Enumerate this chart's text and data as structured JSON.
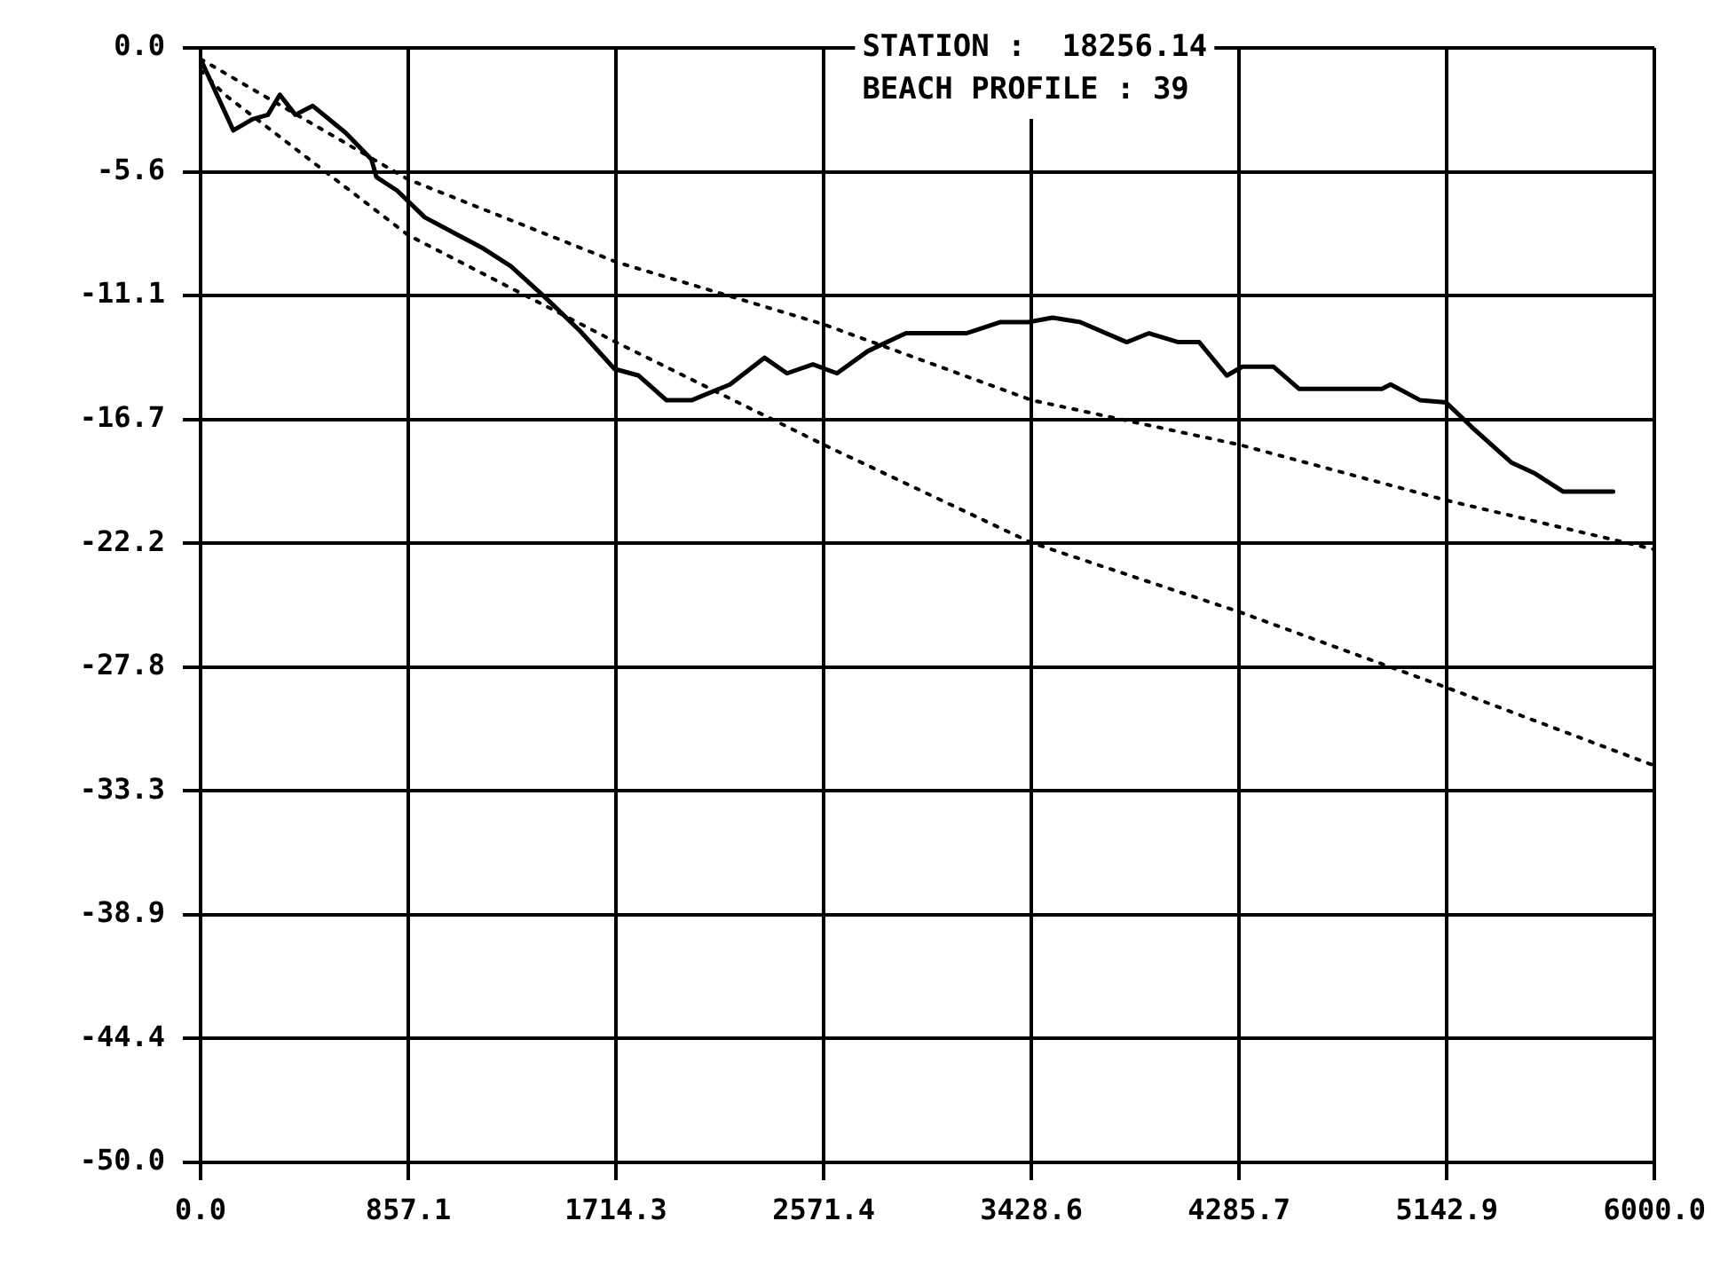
{
  "chart_data": {
    "type": "line",
    "title": "STATION :  18256.14",
    "subtitle": "BEACH PROFILE : 39",
    "xlim": [
      0,
      6000
    ],
    "ylim": [
      -50,
      0
    ],
    "xticks": [
      {
        "value": 0,
        "label": "0.0"
      },
      {
        "value": 857.14,
        "label": "857.1"
      },
      {
        "value": 1714.29,
        "label": "1714.3"
      },
      {
        "value": 2571.43,
        "label": "2571.4"
      },
      {
        "value": 3428.57,
        "label": "3428.6"
      },
      {
        "value": 4285.71,
        "label": "4285.7"
      },
      {
        "value": 5142.86,
        "label": "5142.9"
      },
      {
        "value": 6000,
        "label": "6000.0"
      }
    ],
    "yticks": [
      {
        "value": 0,
        "label": "0.0"
      },
      {
        "value": -5.556,
        "label": "-5.6"
      },
      {
        "value": -11.111,
        "label": "-11.1"
      },
      {
        "value": -16.667,
        "label": "-16.7"
      },
      {
        "value": -22.222,
        "label": "-22.2"
      },
      {
        "value": -27.778,
        "label": "-27.8"
      },
      {
        "value": -33.333,
        "label": "-33.3"
      },
      {
        "value": -38.889,
        "label": "-38.9"
      },
      {
        "value": -44.444,
        "label": "-44.4"
      },
      {
        "value": -50,
        "label": "-50.0"
      }
    ],
    "grid": true,
    "legend": false,
    "marker": "none",
    "series": [
      {
        "color": "#000000",
        "line_style": "solid",
        "x": [
          0,
          135,
          214,
          278,
          327,
          391,
          463,
          598,
          705,
          726,
          811,
          925,
          1167,
          1281,
          1423,
          1566,
          1708,
          1808,
          1922,
          2028,
          2185,
          2327,
          2420,
          2527,
          2626,
          2754,
          2911,
          3160,
          3302,
          3416,
          3516,
          3630,
          3822,
          3914,
          4035,
          4121,
          4235,
          4299,
          4427,
          4534,
          4875,
          4911,
          5032,
          5139,
          5245,
          5409,
          5508,
          5622,
          5829
        ],
        "values": [
          -0.5,
          -3.7,
          -3.2,
          -3.0,
          -2.1,
          -3.0,
          -2.6,
          -3.8,
          -5.0,
          -5.8,
          -6.4,
          -7.6,
          -9.0,
          -9.8,
          -11.2,
          -12.7,
          -14.4,
          -14.7,
          -15.8,
          -15.8,
          -15.1,
          -13.9,
          -14.6,
          -14.2,
          -14.6,
          -13.6,
          -12.8,
          -12.8,
          -12.3,
          -12.3,
          -12.1,
          -12.3,
          -13.2,
          -12.8,
          -13.2,
          -13.2,
          -14.7,
          -14.3,
          -14.3,
          -15.3,
          -15.3,
          -15.1,
          -15.8,
          -15.9,
          -17.0,
          -18.6,
          -19.1,
          -19.9,
          -19.9
        ]
      },
      {
        "color": "#000000",
        "line_style": "dotted",
        "x": [
          0,
          857,
          1714,
          2571,
          3429,
          4286,
          5143,
          6000
        ],
        "values": [
          -0.5,
          -5.9,
          -9.6,
          -12.4,
          -15.8,
          -17.8,
          -20.3,
          -22.5
        ]
      },
      {
        "color": "#000000",
        "line_style": "dotted",
        "x": [
          0,
          100,
          857,
          1714,
          2571,
          3429,
          4286,
          5143,
          6000
        ],
        "values": [
          -1.0,
          -2.1,
          -8.4,
          -13.2,
          -17.8,
          -22.2,
          -25.3,
          -28.7,
          -32.2
        ]
      }
    ]
  }
}
